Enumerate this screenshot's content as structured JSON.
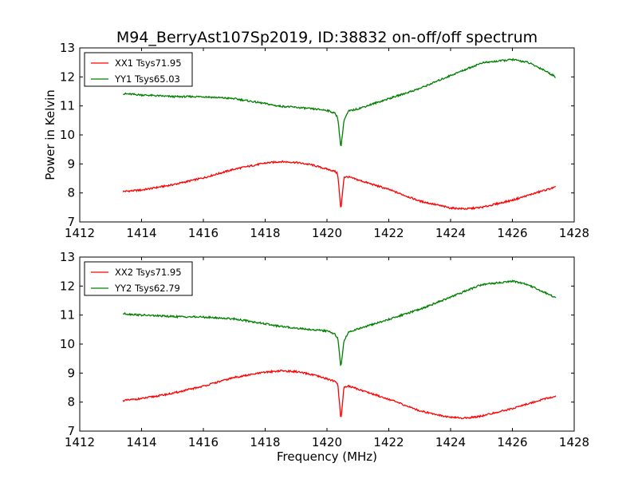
{
  "figure": {
    "title": "M94_BerryAst107Sp2019, ID:38832 on-off/off spectrum",
    "xlabel": "Frequency (MHz)",
    "ylabel": "Power in Kelvin"
  },
  "chart_data": [
    {
      "type": "line",
      "title": "M94_BerryAst107Sp2019, ID:38832 on-off/off spectrum",
      "xlabel": "",
      "ylabel": "Power in Kelvin",
      "xlim": [
        1412,
        1428
      ],
      "ylim": [
        7,
        13
      ],
      "xticks": [
        1412,
        1414,
        1416,
        1418,
        1420,
        1422,
        1424,
        1426,
        1428
      ],
      "yticks": [
        7,
        8,
        9,
        10,
        11,
        12,
        13
      ],
      "grid": false,
      "legend_position": "upper-left",
      "series": [
        {
          "name": "XX1 Tsys71.95",
          "color": "#ff0000",
          "x": [
            1413.4,
            1414.0,
            1415.0,
            1416.0,
            1417.0,
            1418.0,
            1418.5,
            1419.0,
            1419.5,
            1420.0,
            1420.25,
            1420.35,
            1420.45,
            1420.55,
            1420.7,
            1421.0,
            1422.0,
            1423.0,
            1424.0,
            1424.5,
            1425.0,
            1426.0,
            1427.0,
            1427.4
          ],
          "y": [
            8.05,
            8.1,
            8.28,
            8.52,
            8.82,
            9.03,
            9.08,
            9.05,
            8.97,
            8.82,
            8.75,
            8.65,
            7.4,
            8.55,
            8.55,
            8.45,
            8.12,
            7.72,
            7.48,
            7.45,
            7.5,
            7.75,
            8.08,
            8.2
          ]
        },
        {
          "name": "YY1 Tsys65.03",
          "color": "#008000",
          "x": [
            1413.4,
            1414.0,
            1415.0,
            1416.0,
            1417.0,
            1418.0,
            1418.4,
            1419.0,
            1420.0,
            1420.25,
            1420.35,
            1420.45,
            1420.55,
            1420.7,
            1421.0,
            1422.0,
            1423.0,
            1424.0,
            1425.0,
            1426.0,
            1426.5,
            1427.0,
            1427.4
          ],
          "y": [
            11.42,
            11.38,
            11.32,
            11.32,
            11.25,
            11.08,
            11.0,
            10.95,
            10.85,
            10.75,
            10.6,
            9.55,
            10.5,
            10.82,
            10.9,
            11.25,
            11.6,
            12.05,
            12.48,
            12.6,
            12.5,
            12.25,
            12.0
          ]
        }
      ]
    },
    {
      "type": "line",
      "title": "",
      "xlabel": "Frequency (MHz)",
      "ylabel": "",
      "xlim": [
        1412,
        1428
      ],
      "ylim": [
        7,
        13
      ],
      "xticks": [
        1412,
        1414,
        1416,
        1418,
        1420,
        1422,
        1424,
        1426,
        1428
      ],
      "yticks": [
        7,
        8,
        9,
        10,
        11,
        12,
        13
      ],
      "grid": false,
      "legend_position": "upper-left",
      "series": [
        {
          "name": "XX2 Tsys71.95",
          "color": "#ff0000",
          "x": [
            1413.4,
            1414.0,
            1415.0,
            1416.0,
            1417.0,
            1418.0,
            1418.5,
            1419.0,
            1419.5,
            1420.0,
            1420.25,
            1420.35,
            1420.45,
            1420.55,
            1420.7,
            1421.0,
            1422.0,
            1423.0,
            1424.0,
            1424.5,
            1425.0,
            1426.0,
            1427.0,
            1427.4
          ],
          "y": [
            8.05,
            8.12,
            8.3,
            8.55,
            8.85,
            9.03,
            9.08,
            9.05,
            8.95,
            8.8,
            8.72,
            8.62,
            7.4,
            8.52,
            8.55,
            8.45,
            8.1,
            7.7,
            7.47,
            7.45,
            7.52,
            7.78,
            8.1,
            8.2
          ]
        },
        {
          "name": "YY2 Tsys62.79",
          "color": "#008000",
          "x": [
            1413.4,
            1414.0,
            1415.0,
            1416.0,
            1417.0,
            1418.0,
            1418.4,
            1419.0,
            1420.0,
            1420.25,
            1420.35,
            1420.45,
            1420.55,
            1420.7,
            1421.0,
            1422.0,
            1423.0,
            1424.0,
            1425.0,
            1426.0,
            1426.5,
            1427.0,
            1427.4
          ],
          "y": [
            11.05,
            11.0,
            10.95,
            10.93,
            10.87,
            10.7,
            10.62,
            10.55,
            10.45,
            10.35,
            10.2,
            9.2,
            10.1,
            10.42,
            10.52,
            10.85,
            11.2,
            11.62,
            12.05,
            12.17,
            12.05,
            11.8,
            11.6
          ]
        }
      ]
    }
  ]
}
